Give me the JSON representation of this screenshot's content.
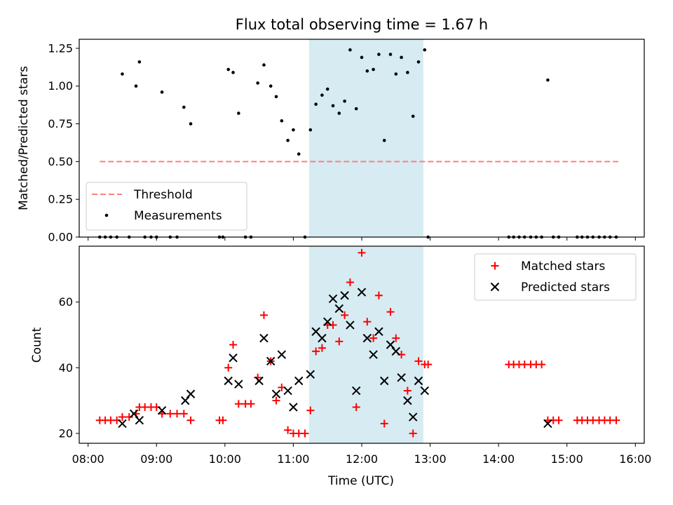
{
  "chart_data": [
    {
      "type": "scatter",
      "title": "Flux total observing time = 1.67 h",
      "xlabel": "",
      "ylabel": "Matched/Predicted stars",
      "xlim": [
        7.87,
        16.13
      ],
      "ylim": [
        0.0,
        1.31
      ],
      "yticks": [
        0.0,
        0.25,
        0.5,
        0.75,
        1.0,
        1.25
      ],
      "ytick_labels": [
        "0.00",
        "0.25",
        "0.50",
        "0.75",
        "1.00",
        "1.25"
      ],
      "highlight_span": [
        11.23,
        12.9
      ],
      "legend_position": "lower-left",
      "threshold": {
        "name": "Threshold",
        "value": 0.5,
        "x_range": [
          8.17,
          15.75
        ],
        "color": "#ff7f7f"
      },
      "measurements": {
        "name": "Measurements",
        "color": "#000000",
        "x": [
          8.17,
          8.25,
          8.33,
          8.42,
          8.5,
          8.6,
          8.7,
          8.75,
          8.83,
          8.92,
          9.0,
          9.08,
          9.2,
          9.3,
          9.4,
          9.5,
          9.92,
          9.97,
          10.05,
          10.12,
          10.2,
          10.3,
          10.38,
          10.48,
          10.57,
          10.67,
          10.75,
          10.83,
          10.92,
          11.0,
          11.08,
          11.17,
          11.25,
          11.33,
          11.42,
          11.5,
          11.58,
          11.67,
          11.75,
          11.83,
          11.92,
          12.0,
          12.08,
          12.17,
          12.25,
          12.33,
          12.42,
          12.5,
          12.58,
          12.67,
          12.75,
          12.83,
          12.92,
          12.97,
          14.15,
          14.22,
          14.3,
          14.38,
          14.47,
          14.55,
          14.63,
          14.72,
          14.8,
          14.88,
          15.15,
          15.22,
          15.3,
          15.38,
          15.47,
          15.55,
          15.63,
          15.72
        ],
        "y": [
          0,
          0,
          0,
          0,
          1.08,
          0,
          1.0,
          1.16,
          0,
          0,
          0,
          0.96,
          0,
          0,
          0.86,
          0.75,
          0,
          0,
          1.11,
          1.09,
          0.82,
          0,
          0,
          1.02,
          1.14,
          1.0,
          0.93,
          0.77,
          0.64,
          0.71,
          0.55,
          0,
          0.71,
          0.88,
          0.94,
          0.98,
          0.87,
          0.82,
          0.9,
          1.24,
          0.85,
          1.19,
          1.1,
          1.11,
          1.21,
          0.64,
          1.21,
          1.08,
          1.19,
          1.09,
          0.8,
          1.16,
          1.24,
          0,
          0,
          0,
          0,
          0,
          0,
          0,
          0,
          1.04,
          0,
          0,
          0,
          0,
          0,
          0,
          0,
          0,
          0,
          0
        ]
      }
    },
    {
      "type": "scatter",
      "title": "",
      "xlabel": "Time (UTC)",
      "ylabel": "Count",
      "xlim": [
        7.87,
        16.13
      ],
      "ylim": [
        17,
        77
      ],
      "xticks": [
        8,
        9,
        10,
        11,
        12,
        13,
        14,
        15,
        16
      ],
      "xtick_labels": [
        "08:00",
        "09:00",
        "10:00",
        "11:00",
        "12:00",
        "13:00",
        "14:00",
        "15:00",
        "16:00"
      ],
      "yticks": [
        20,
        40,
        60
      ],
      "ytick_labels": [
        "20",
        "40",
        "60"
      ],
      "highlight_span": [
        11.23,
        12.9
      ],
      "legend_position": "top-right",
      "series": [
        {
          "name": "Matched stars",
          "marker": "+",
          "color": "#ff0000",
          "x": [
            8.17,
            8.25,
            8.33,
            8.42,
            8.5,
            8.6,
            8.7,
            8.75,
            8.83,
            8.92,
            9.0,
            9.08,
            9.2,
            9.3,
            9.4,
            9.5,
            9.92,
            9.97,
            10.05,
            10.12,
            10.2,
            10.3,
            10.38,
            10.48,
            10.57,
            10.67,
            10.75,
            10.83,
            10.92,
            11.0,
            11.08,
            11.17,
            11.25,
            11.33,
            11.42,
            11.5,
            11.58,
            11.67,
            11.75,
            11.83,
            11.92,
            12.0,
            12.08,
            12.17,
            12.25,
            12.33,
            12.42,
            12.5,
            12.58,
            12.67,
            12.75,
            12.83,
            12.92,
            12.97,
            14.15,
            14.22,
            14.3,
            14.38,
            14.47,
            14.55,
            14.63,
            14.72,
            14.8,
            14.88,
            15.15,
            15.22,
            15.3,
            15.38,
            15.47,
            15.55,
            15.63,
            15.72
          ],
          "y": [
            24,
            24,
            24,
            24,
            25,
            25,
            26,
            28,
            28,
            28,
            28,
            26,
            26,
            26,
            26,
            24,
            24,
            24,
            40,
            47,
            29,
            29,
            29,
            37,
            56,
            42,
            30,
            34,
            21,
            20,
            20,
            20,
            27,
            45,
            46,
            53,
            53,
            48,
            56,
            66,
            28,
            75,
            54,
            49,
            62,
            23,
            57,
            49,
            44,
            33,
            20,
            42,
            41,
            41,
            41,
            41,
            41,
            41,
            41,
            41,
            41,
            24,
            24,
            24,
            24,
            24,
            24,
            24,
            24,
            24,
            24,
            24
          ]
        },
        {
          "name": "Predicted stars",
          "marker": "x",
          "color": "#000000",
          "x": [
            8.5,
            8.67,
            8.75,
            9.08,
            9.42,
            9.5,
            10.05,
            10.12,
            10.2,
            10.5,
            10.57,
            10.67,
            10.75,
            10.83,
            10.92,
            11.0,
            11.08,
            11.25,
            11.33,
            11.42,
            11.5,
            11.58,
            11.67,
            11.75,
            11.83,
            11.92,
            12.0,
            12.08,
            12.17,
            12.25,
            12.33,
            12.42,
            12.5,
            12.58,
            12.67,
            12.75,
            12.83,
            12.92,
            14.72
          ],
          "y": [
            23,
            26,
            24,
            27,
            30,
            32,
            36,
            43,
            35,
            36,
            49,
            42,
            32,
            44,
            33,
            28,
            36,
            38,
            51,
            49,
            54,
            61,
            58,
            62,
            53,
            33,
            63,
            49,
            44,
            51,
            36,
            47,
            45,
            37,
            30,
            25,
            36,
            33,
            23
          ]
        }
      ]
    }
  ]
}
